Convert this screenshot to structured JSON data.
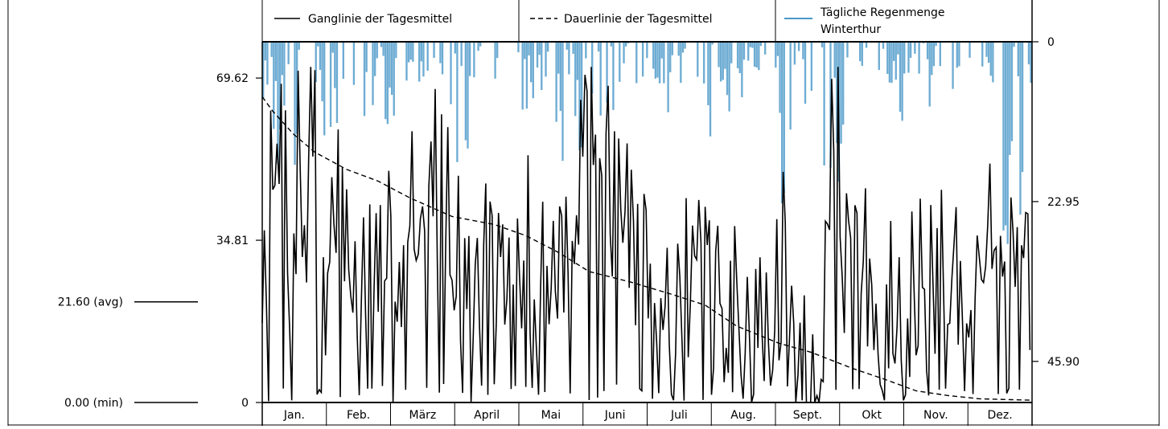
{
  "chart_data": {
    "type": "line",
    "legend": {
      "placement": "top",
      "entries": [
        {
          "label": "Ganglinie der Tagesmittel",
          "style": "solid",
          "color": "#000000"
        },
        {
          "label": "Dauerlinie der Tagesmittel",
          "style": "dashed",
          "color": "#000000"
        },
        {
          "label_lines": [
            "Tägliche Regenmenge",
            "Winterthur"
          ],
          "style": "bar",
          "color": "#4a97c8"
        }
      ]
    },
    "left_axis": {
      "ylim": [
        0,
        77.4
      ],
      "ticks": [
        {
          "value": 0,
          "label": "0"
        },
        {
          "value": 34.81,
          "label": "34.81"
        },
        {
          "value": 69.62,
          "label": "69.62"
        }
      ]
    },
    "right_axis": {
      "ylim": [
        0,
        51.8
      ],
      "inverted": true,
      "ticks": [
        {
          "value": 0,
          "label": "0"
        },
        {
          "value": 22.95,
          "label": "22.95"
        },
        {
          "value": 45.9,
          "label": "45.90"
        }
      ]
    },
    "reference_marks": [
      {
        "value": 21.6,
        "label": "21.60 (avg)"
      },
      {
        "value": 0.0,
        "label": "0.00 (min)"
      }
    ],
    "months": [
      "Jan.",
      "Feb.",
      "März",
      "April",
      "Mai",
      "Juni",
      "Juli",
      "Aug.",
      "Sept.",
      "Okt",
      "Nov.",
      "Dez."
    ],
    "duration_curve": [
      [
        0,
        65.6
      ],
      [
        5,
        62.5
      ],
      [
        15,
        57.5
      ],
      [
        25,
        53.7
      ],
      [
        40,
        50.0
      ],
      [
        55,
        47.5
      ],
      [
        70,
        43.9
      ],
      [
        90,
        39.9
      ],
      [
        110,
        38.2
      ],
      [
        125,
        35.8
      ],
      [
        140,
        32.3
      ],
      [
        155,
        28.1
      ],
      [
        175,
        25.8
      ],
      [
        195,
        23.1
      ],
      [
        210,
        20.9
      ],
      [
        225,
        16.4
      ],
      [
        245,
        12.7
      ],
      [
        260,
        10.8
      ],
      [
        280,
        7.3
      ],
      [
        295,
        5.0
      ],
      [
        310,
        2.5
      ],
      [
        325,
        1.5
      ],
      [
        340,
        0.8
      ],
      [
        355,
        0.6
      ],
      [
        365,
        0.5
      ]
    ],
    "hydrograph": {
      "seed": 7,
      "anchors": [
        [
          0,
          27
        ],
        [
          3,
          44
        ],
        [
          7,
          45
        ],
        [
          10,
          60
        ],
        [
          14,
          20
        ],
        [
          17,
          55
        ],
        [
          20,
          30
        ],
        [
          24,
          65
        ],
        [
          27,
          36
        ],
        [
          30,
          15
        ],
        [
          34,
          45
        ],
        [
          38,
          38
        ],
        [
          42,
          34
        ],
        [
          46,
          20
        ],
        [
          50,
          32
        ],
        [
          54,
          25
        ],
        [
          58,
          36
        ],
        [
          62,
          38
        ],
        [
          66,
          28
        ],
        [
          70,
          50
        ],
        [
          74,
          45
        ],
        [
          78,
          42
        ],
        [
          82,
          50
        ],
        [
          86,
          45
        ],
        [
          90,
          40
        ],
        [
          94,
          30
        ],
        [
          98,
          22
        ],
        [
          102,
          28
        ],
        [
          106,
          33
        ],
        [
          110,
          28
        ],
        [
          114,
          25
        ],
        [
          118,
          28
        ],
        [
          122,
          30
        ],
        [
          126,
          35
        ],
        [
          130,
          25
        ],
        [
          134,
          32
        ],
        [
          138,
          25
        ],
        [
          142,
          30
        ],
        [
          146,
          42
        ],
        [
          150,
          52
        ],
        [
          154,
          62
        ],
        [
          158,
          66
        ],
        [
          162,
          55
        ],
        [
          166,
          45
        ],
        [
          170,
          42
        ],
        [
          174,
          35
        ],
        [
          178,
          30
        ],
        [
          182,
          28
        ],
        [
          186,
          26
        ],
        [
          190,
          25
        ],
        [
          194,
          28
        ],
        [
          198,
          24
        ],
        [
          202,
          28
        ],
        [
          206,
          24
        ],
        [
          210,
          26
        ],
        [
          214,
          22
        ],
        [
          218,
          20
        ],
        [
          222,
          18
        ],
        [
          226,
          20
        ],
        [
          230,
          18
        ],
        [
          234,
          18
        ],
        [
          238,
          20
        ],
        [
          242,
          22
        ],
        [
          246,
          30
        ],
        [
          249,
          35
        ],
        [
          252,
          12
        ],
        [
          256,
          10
        ],
        [
          260,
          8
        ],
        [
          264,
          15
        ],
        [
          268,
          22
        ],
        [
          270,
          55
        ],
        [
          273,
          65
        ],
        [
          276,
          30
        ],
        [
          280,
          38
        ],
        [
          284,
          32
        ],
        [
          288,
          28
        ],
        [
          292,
          25
        ],
        [
          296,
          25
        ],
        [
          300,
          26
        ],
        [
          304,
          25
        ],
        [
          308,
          22
        ],
        [
          312,
          25
        ],
        [
          316,
          24
        ],
        [
          320,
          26
        ],
        [
          324,
          30
        ],
        [
          328,
          28
        ],
        [
          332,
          32
        ],
        [
          336,
          30
        ],
        [
          340,
          33
        ],
        [
          344,
          35
        ],
        [
          348,
          38
        ],
        [
          352,
          37
        ],
        [
          356,
          35
        ],
        [
          360,
          22
        ],
        [
          364,
          25
        ]
      ]
    },
    "precipitation": {
      "seed": 13,
      "color": "#4a97c8",
      "wet_periods": [
        [
          0,
          15,
          18
        ],
        [
          28,
          35,
          14
        ],
        [
          56,
          63,
          12
        ],
        [
          85,
          98,
          18
        ],
        [
          120,
          130,
          10
        ],
        [
          138,
          152,
          20
        ],
        [
          160,
          166,
          13
        ],
        [
          185,
          195,
          12
        ],
        [
          220,
          228,
          11
        ],
        [
          245,
          250,
          30
        ],
        [
          266,
          275,
          22
        ],
        [
          300,
          306,
          12
        ],
        [
          325,
          330,
          11
        ],
        [
          350,
          360,
          30
        ]
      ]
    }
  }
}
